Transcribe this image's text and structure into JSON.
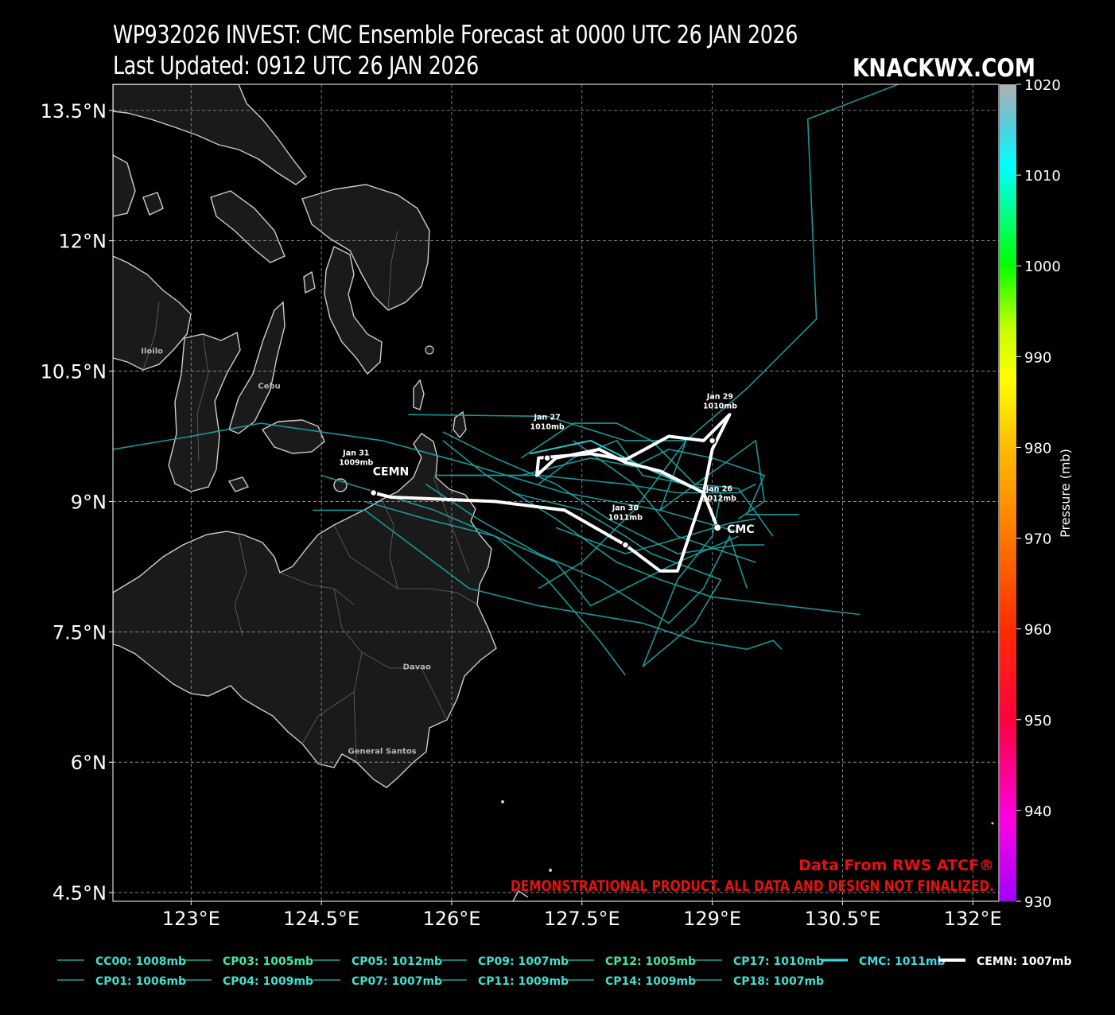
{
  "header": {
    "title": "WP932026 INVEST: CMC Ensemble Forecast at 0000 UTC 26 JAN 2026",
    "subtitle": "Last Updated: 0912 UTC 26 JAN 2026",
    "brand": "KNACKWX.COM"
  },
  "map": {
    "lon_range": [
      122.1,
      132.3
    ],
    "lat_range": [
      4.4,
      13.8
    ],
    "lat_ticks": [
      {
        "value": 13.5,
        "label": "13.5°N"
      },
      {
        "value": 12,
        "label": "12°N"
      },
      {
        "value": 10.5,
        "label": "10.5°N"
      },
      {
        "value": 9,
        "label": "9°N"
      },
      {
        "value": 7.5,
        "label": "7.5°N"
      },
      {
        "value": 6,
        "label": "6°N"
      },
      {
        "value": 4.5,
        "label": "4.5°N"
      }
    ],
    "lon_ticks": [
      {
        "value": 123,
        "label": "123°E"
      },
      {
        "value": 124.5,
        "label": "124.5°E"
      },
      {
        "value": 126,
        "label": "126°E"
      },
      {
        "value": 127.5,
        "label": "127.5°E"
      },
      {
        "value": 129,
        "label": "129°E"
      },
      {
        "value": 130.5,
        "label": "130.5°E"
      },
      {
        "value": 132,
        "label": "132°E"
      }
    ],
    "land_fill": "#1a1a1a",
    "coast_color": "#cccccc",
    "cities": [
      {
        "name": "Iloilo",
        "lon": 122.55,
        "lat": 10.7
      },
      {
        "name": "Cebu",
        "lon": 123.9,
        "lat": 10.3
      },
      {
        "name": "Davao",
        "lon": 125.6,
        "lat": 7.07
      },
      {
        "name": "General Santos",
        "lon": 125.2,
        "lat": 6.1
      }
    ]
  },
  "colorbar": {
    "label": "Pressure (mb)",
    "min": 930,
    "max": 1020,
    "ticks": [
      "1020",
      "1010",
      "1000",
      "990",
      "980",
      "970",
      "960",
      "950",
      "940",
      "930"
    ]
  },
  "tracks": {
    "ensemble_color": "#1a9f9f",
    "members": [
      {
        "points": [
          [
            131.4,
            13.9
          ],
          [
            130.1,
            13.4
          ],
          [
            130.2,
            11.1
          ],
          [
            129.4,
            10.3
          ],
          [
            128.7,
            9.7
          ],
          [
            128.1,
            8.9
          ],
          [
            127.5,
            8.3
          ],
          [
            127.0,
            8.0
          ]
        ]
      },
      {
        "points": [
          [
            122.1,
            9.6
          ],
          [
            123.0,
            9.75
          ],
          [
            123.8,
            9.9
          ],
          [
            125.2,
            9.7
          ],
          [
            126.3,
            9.4
          ],
          [
            127.3,
            9.1
          ],
          [
            128.4,
            8.9
          ],
          [
            129.3,
            8.65
          ]
        ]
      },
      {
        "points": [
          [
            125.5,
            10.0
          ],
          [
            127.1,
            9.98
          ],
          [
            128.0,
            9.7
          ],
          [
            128.7,
            9.7
          ],
          [
            128.4,
            8.9
          ],
          [
            129.5,
            9.7
          ],
          [
            129.6,
            9.0
          ],
          [
            129.3,
            8.8
          ]
        ]
      },
      {
        "points": [
          [
            124.4,
            8.9
          ],
          [
            125.0,
            8.9
          ],
          [
            126.2,
            8.0
          ],
          [
            127.0,
            7.8
          ],
          [
            128.2,
            7.6
          ],
          [
            128.8,
            7.4
          ],
          [
            129.4,
            7.3
          ],
          [
            129.7,
            7.4
          ],
          [
            129.8,
            7.3
          ]
        ]
      },
      {
        "points": [
          [
            124.5,
            9.3
          ],
          [
            125.8,
            8.9
          ],
          [
            127.2,
            8.3
          ],
          [
            127.6,
            7.8
          ],
          [
            128.6,
            8.3
          ],
          [
            129.3,
            8.6
          ]
        ]
      },
      {
        "points": [
          [
            126.0,
            9.3
          ],
          [
            126.8,
            9.3
          ],
          [
            127.6,
            9.5
          ],
          [
            128.1,
            9.4
          ],
          [
            128.5,
            9.6
          ],
          [
            129.0,
            9.5
          ],
          [
            129.6,
            9.3
          ],
          [
            129.4,
            8.85
          ],
          [
            130.0,
            8.85
          ]
        ]
      },
      {
        "points": [
          [
            125.9,
            9.7
          ],
          [
            126.4,
            9.3
          ],
          [
            127.2,
            8.8
          ],
          [
            127.9,
            8.3
          ],
          [
            128.4,
            8.1
          ],
          [
            129.0,
            7.9
          ],
          [
            130.7,
            7.7
          ]
        ]
      },
      {
        "points": [
          [
            126.8,
            9.5
          ],
          [
            127.4,
            9.9
          ],
          [
            127.9,
            9.9
          ],
          [
            128.3,
            9.7
          ],
          [
            128.8,
            9.2
          ],
          [
            129.3,
            9.15
          ],
          [
            129.7,
            8.6
          ]
        ]
      },
      {
        "points": [
          [
            125.7,
            9.2
          ],
          [
            126.3,
            8.8
          ],
          [
            127.0,
            8.4
          ],
          [
            127.7,
            8.1
          ],
          [
            128.5,
            7.6
          ],
          [
            128.9,
            8.0
          ],
          [
            129.2,
            8.6
          ],
          [
            129.4,
            8.0
          ]
        ]
      },
      {
        "points": [
          [
            127.2,
            8.7
          ],
          [
            128.0,
            8.4
          ],
          [
            128.7,
            8.6
          ],
          [
            129.2,
            8.75
          ],
          [
            129.5,
            8.8
          ]
        ]
      },
      {
        "points": [
          [
            127.0,
            9.2
          ],
          [
            127.4,
            9.5
          ],
          [
            127.9,
            9.7
          ],
          [
            128.2,
            9.3
          ],
          [
            128.7,
            9.2
          ],
          [
            129.1,
            9.1
          ],
          [
            129.0,
            8.6
          ],
          [
            128.6,
            8.1
          ],
          [
            128.2,
            7.1
          ],
          [
            128.8,
            7.6
          ],
          [
            129.1,
            8.1
          ]
        ]
      },
      {
        "points": [
          [
            126.7,
            9.1
          ],
          [
            127.5,
            8.9
          ],
          [
            128.0,
            8.6
          ],
          [
            128.3,
            8.4
          ],
          [
            129.1,
            8.1
          ]
        ]
      },
      {
        "points": [
          [
            125.8,
            9.3
          ],
          [
            127.0,
            9.3
          ],
          [
            128.0,
            9.2
          ],
          [
            128.6,
            9.1
          ],
          [
            129.3,
            9.1
          ],
          [
            129.5,
            9.2
          ]
        ]
      },
      {
        "points": [
          [
            125.0,
            9.0
          ],
          [
            125.7,
            8.8
          ],
          [
            126.5,
            8.6
          ],
          [
            127.1,
            8.1
          ],
          [
            127.7,
            7.4
          ],
          [
            128.0,
            7.0
          ]
        ]
      },
      {
        "points": [
          [
            127.4,
            9.7
          ],
          [
            128.1,
            9.2
          ],
          [
            128.6,
            8.6
          ],
          [
            129.2,
            8.4
          ],
          [
            129.5,
            8.3
          ]
        ]
      },
      {
        "points": [
          [
            125.9,
            9.8
          ],
          [
            126.5,
            9.5
          ],
          [
            127.2,
            9.2
          ],
          [
            127.8,
            8.8
          ],
          [
            128.6,
            8.4
          ],
          [
            129.3,
            8.5
          ],
          [
            129.6,
            8.5
          ]
        ]
      }
    ],
    "cmc": {
      "points": [
        [
          129.06,
          8.7
        ],
        [
          128.9,
          9.1
        ],
        [
          128.2,
          9.4
        ],
        [
          127.6,
          9.7
        ],
        [
          126.9,
          9.55
        ]
      ],
      "label": "CMC"
    },
    "cemn": {
      "points": [
        [
          129.06,
          8.7
        ],
        [
          128.9,
          9.1
        ],
        [
          128.4,
          9.35
        ],
        [
          128.0,
          9.45
        ],
        [
          127.7,
          9.6
        ],
        [
          127.2,
          9.5
        ],
        [
          126.98,
          9.3
        ],
        [
          127.0,
          9.5
        ],
        [
          127.6,
          9.55
        ],
        [
          128.0,
          9.48
        ],
        [
          128.5,
          9.75
        ],
        [
          128.9,
          9.7
        ],
        [
          129.2,
          10.0
        ],
        [
          129.0,
          9.6
        ],
        [
          128.9,
          9.1
        ],
        [
          128.6,
          8.2
        ],
        [
          128.4,
          8.2
        ],
        [
          128.0,
          8.5
        ],
        [
          127.3,
          8.9
        ],
        [
          126.5,
          9.0
        ],
        [
          125.3,
          9.05
        ],
        [
          125.1,
          9.1
        ]
      ],
      "label": "CEMN"
    },
    "date_markers": [
      {
        "lon": 129.06,
        "lat": 8.7,
        "date": "Jan 26",
        "pressure": "1012mb",
        "lx": 129.08,
        "ly": 9.12
      },
      {
        "lon": 127.1,
        "lat": 9.5,
        "date": "Jan 27",
        "pressure": "1010mb",
        "lx": 127.1,
        "ly": 9.94
      },
      {
        "lon": 129.0,
        "lat": 9.7,
        "date": "Jan 29",
        "pressure": "1010mb",
        "lx": 129.09,
        "ly": 10.18
      },
      {
        "lon": 128.0,
        "lat": 8.5,
        "date": "Jan 30",
        "pressure": "1011mb",
        "lx": 128.0,
        "ly": 8.9
      },
      {
        "lon": 125.1,
        "lat": 9.1,
        "date": "Jan 31",
        "pressure": "1009mb",
        "lx": 124.9,
        "ly": 9.53
      }
    ]
  },
  "annotations": {
    "data_source": "Data From RWS ATCF®",
    "disclaimer": "DEMONSTRATIONAL PRODUCT. ALL DATA AND DESIGN NOT FINALIZED."
  },
  "legend": [
    {
      "label": "CC00: 1008mb",
      "color": "#1a9f9f",
      "text_color": "#3fe0d0"
    },
    {
      "label": "CP03: 1005mb",
      "color": "#17a87a",
      "text_color": "#3fe8a8"
    },
    {
      "label": "CP05: 1012mb",
      "color": "#1a9f9f",
      "text_color": "#3fe0d0"
    },
    {
      "label": "CP09: 1007mb",
      "color": "#1a9f9f",
      "text_color": "#3fe0d0"
    },
    {
      "label": "CP12: 1005mb",
      "color": "#17a87a",
      "text_color": "#3fe8a8"
    },
    {
      "label": "CP17: 1010mb",
      "color": "#1a9f9f",
      "text_color": "#3fe0d0"
    },
    {
      "label": "CMC: 1011mb",
      "color": "#34e0e8",
      "text_color": "#34e0e8"
    },
    {
      "label": "CEMN: 1007mb",
      "color": "#ffffff",
      "text_color": "#ffffff"
    },
    {
      "label": "CP01: 1006mb",
      "color": "#1a9f9f",
      "text_color": "#3fe0d0"
    },
    {
      "label": "CP04: 1009mb",
      "color": "#1a9f9f",
      "text_color": "#3fe0d0"
    },
    {
      "label": "CP07: 1007mb",
      "color": "#1a9f9f",
      "text_color": "#3fe0d0"
    },
    {
      "label": "CP11: 1009mb",
      "color": "#1a9f9f",
      "text_color": "#3fe0d0"
    },
    {
      "label": "CP14: 1009mb",
      "color": "#1a9f9f",
      "text_color": "#3fe0d0"
    },
    {
      "label": "CP18: 1007mb",
      "color": "#1a9f9f",
      "text_color": "#3fe0d0"
    }
  ]
}
